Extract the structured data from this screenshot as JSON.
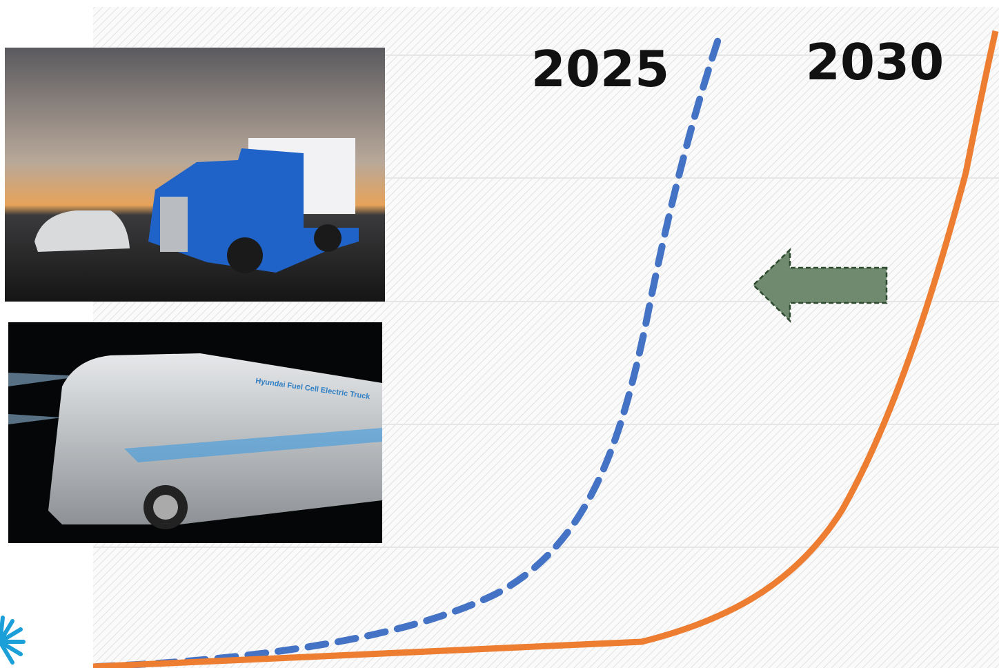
{
  "labels": {
    "left": "2025",
    "right": "2030"
  },
  "photos": {
    "truck_text": "Hyundai Fuel Cell Electric Truck"
  }
}
